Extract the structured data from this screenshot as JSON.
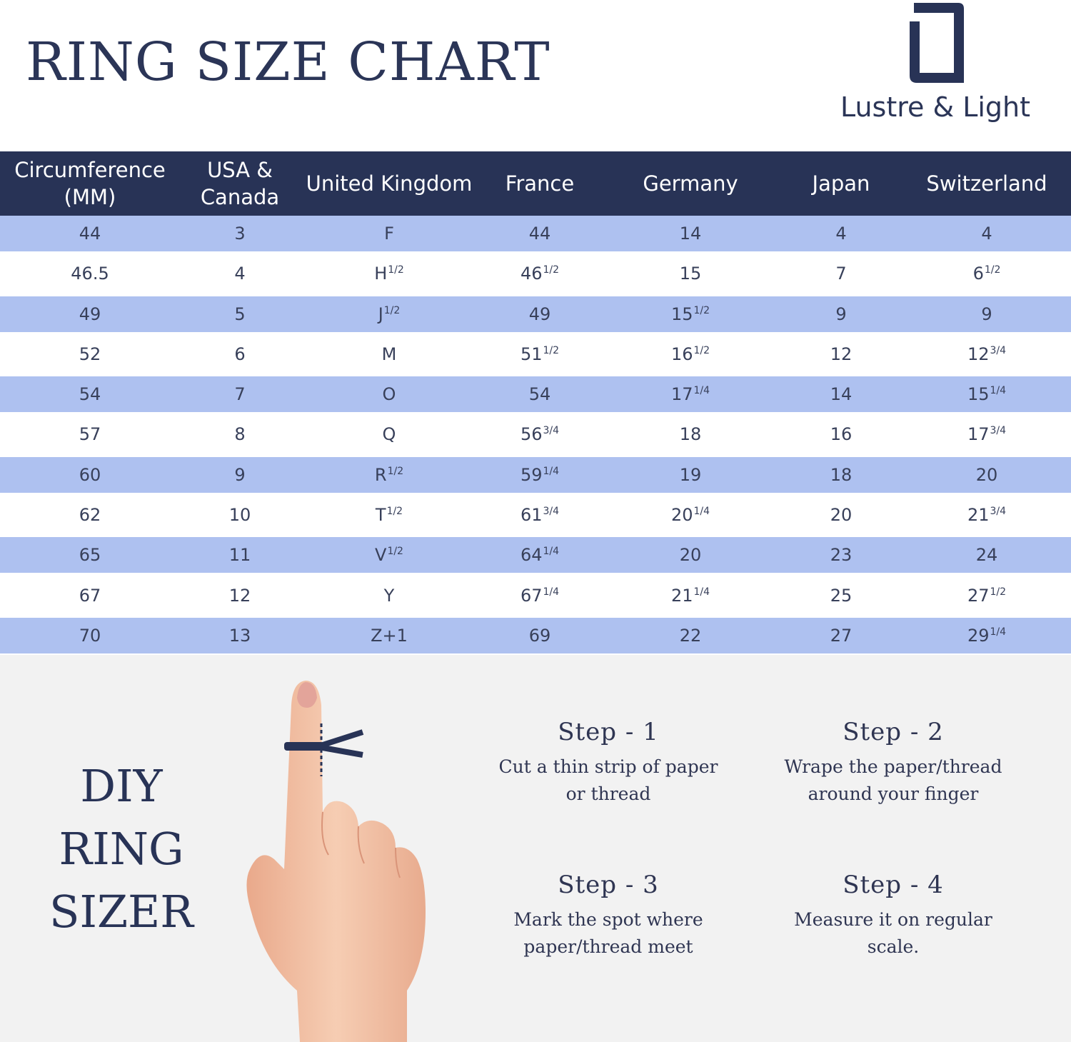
{
  "header": {
    "title": "RING SIZE CHART",
    "brand": "Lustre & Light"
  },
  "table": {
    "columns": [
      [
        "Circumference",
        "(MM)"
      ],
      [
        "USA &",
        "Canada"
      ],
      [
        "United Kingdom"
      ],
      [
        "France"
      ],
      [
        "Germany"
      ],
      [
        "Japan"
      ],
      [
        "Switzerland"
      ]
    ],
    "rows": [
      [
        [
          "44",
          ""
        ],
        [
          "3",
          ""
        ],
        [
          "F",
          ""
        ],
        [
          "44",
          ""
        ],
        [
          "14",
          ""
        ],
        [
          "4",
          ""
        ],
        [
          "4",
          ""
        ]
      ],
      [
        [
          "46.5",
          ""
        ],
        [
          "4",
          ""
        ],
        [
          "H",
          "1/2"
        ],
        [
          "46",
          "1/2"
        ],
        [
          "15",
          ""
        ],
        [
          "7",
          ""
        ],
        [
          "6",
          "1/2"
        ]
      ],
      [
        [
          "49",
          ""
        ],
        [
          "5",
          ""
        ],
        [
          "J",
          "1/2"
        ],
        [
          "49",
          ""
        ],
        [
          "15",
          "1/2"
        ],
        [
          "9",
          ""
        ],
        [
          "9",
          ""
        ]
      ],
      [
        [
          "52",
          ""
        ],
        [
          "6",
          ""
        ],
        [
          "M",
          ""
        ],
        [
          "51",
          "1/2"
        ],
        [
          "16",
          "1/2"
        ],
        [
          "12",
          ""
        ],
        [
          "12",
          "3/4"
        ]
      ],
      [
        [
          "54",
          ""
        ],
        [
          "7",
          ""
        ],
        [
          "O",
          ""
        ],
        [
          "54",
          ""
        ],
        [
          "17",
          "1/4"
        ],
        [
          "14",
          ""
        ],
        [
          "15",
          "1/4"
        ]
      ],
      [
        [
          "57",
          ""
        ],
        [
          "8",
          ""
        ],
        [
          "Q",
          ""
        ],
        [
          "56",
          "3/4"
        ],
        [
          "18",
          ""
        ],
        [
          "16",
          ""
        ],
        [
          "17",
          "3/4"
        ]
      ],
      [
        [
          "60",
          ""
        ],
        [
          "9",
          ""
        ],
        [
          "R",
          "1/2"
        ],
        [
          "59",
          "1/4"
        ],
        [
          "19",
          ""
        ],
        [
          "18",
          ""
        ],
        [
          "20",
          ""
        ]
      ],
      [
        [
          "62",
          ""
        ],
        [
          "10",
          ""
        ],
        [
          "T",
          "1/2"
        ],
        [
          "61",
          "3/4"
        ],
        [
          "20",
          "1/4"
        ],
        [
          "20",
          ""
        ],
        [
          "21",
          "3/4"
        ]
      ],
      [
        [
          "65",
          ""
        ],
        [
          "11",
          ""
        ],
        [
          "V",
          "1/2"
        ],
        [
          "64",
          "1/4"
        ],
        [
          "20",
          ""
        ],
        [
          "23",
          ""
        ],
        [
          "24",
          ""
        ]
      ],
      [
        [
          "67",
          ""
        ],
        [
          "12",
          ""
        ],
        [
          "Y",
          ""
        ],
        [
          "67",
          "1/4"
        ],
        [
          "21",
          "1/4"
        ],
        [
          "25",
          ""
        ],
        [
          "27",
          "1/2"
        ]
      ],
      [
        [
          "70",
          ""
        ],
        [
          "13",
          ""
        ],
        [
          "Z+1",
          ""
        ],
        [
          "69",
          ""
        ],
        [
          "22",
          ""
        ],
        [
          "27",
          ""
        ],
        [
          "29",
          "1/4"
        ]
      ]
    ]
  },
  "diy": {
    "title_lines": [
      "DIY",
      "RING",
      "SIZER"
    ],
    "steps": [
      {
        "title": "Step - 1",
        "lines": [
          "Cut a thin strip of paper",
          "or thread"
        ]
      },
      {
        "title": "Step - 2",
        "lines": [
          "Wrape the paper/thread",
          "around your finger"
        ]
      },
      {
        "title": "Step - 3",
        "lines": [
          "Mark the spot where",
          "paper/thread meet"
        ]
      },
      {
        "title": "Step - 4",
        "lines": [
          "Measure it on regular",
          "scale."
        ]
      }
    ]
  },
  "colors": {
    "navy": "#283356",
    "row_blue": "#aec1f0",
    "row_white": "#ffffff",
    "section_bg": "#f2f2f2",
    "skin": "#f3c3a6"
  }
}
